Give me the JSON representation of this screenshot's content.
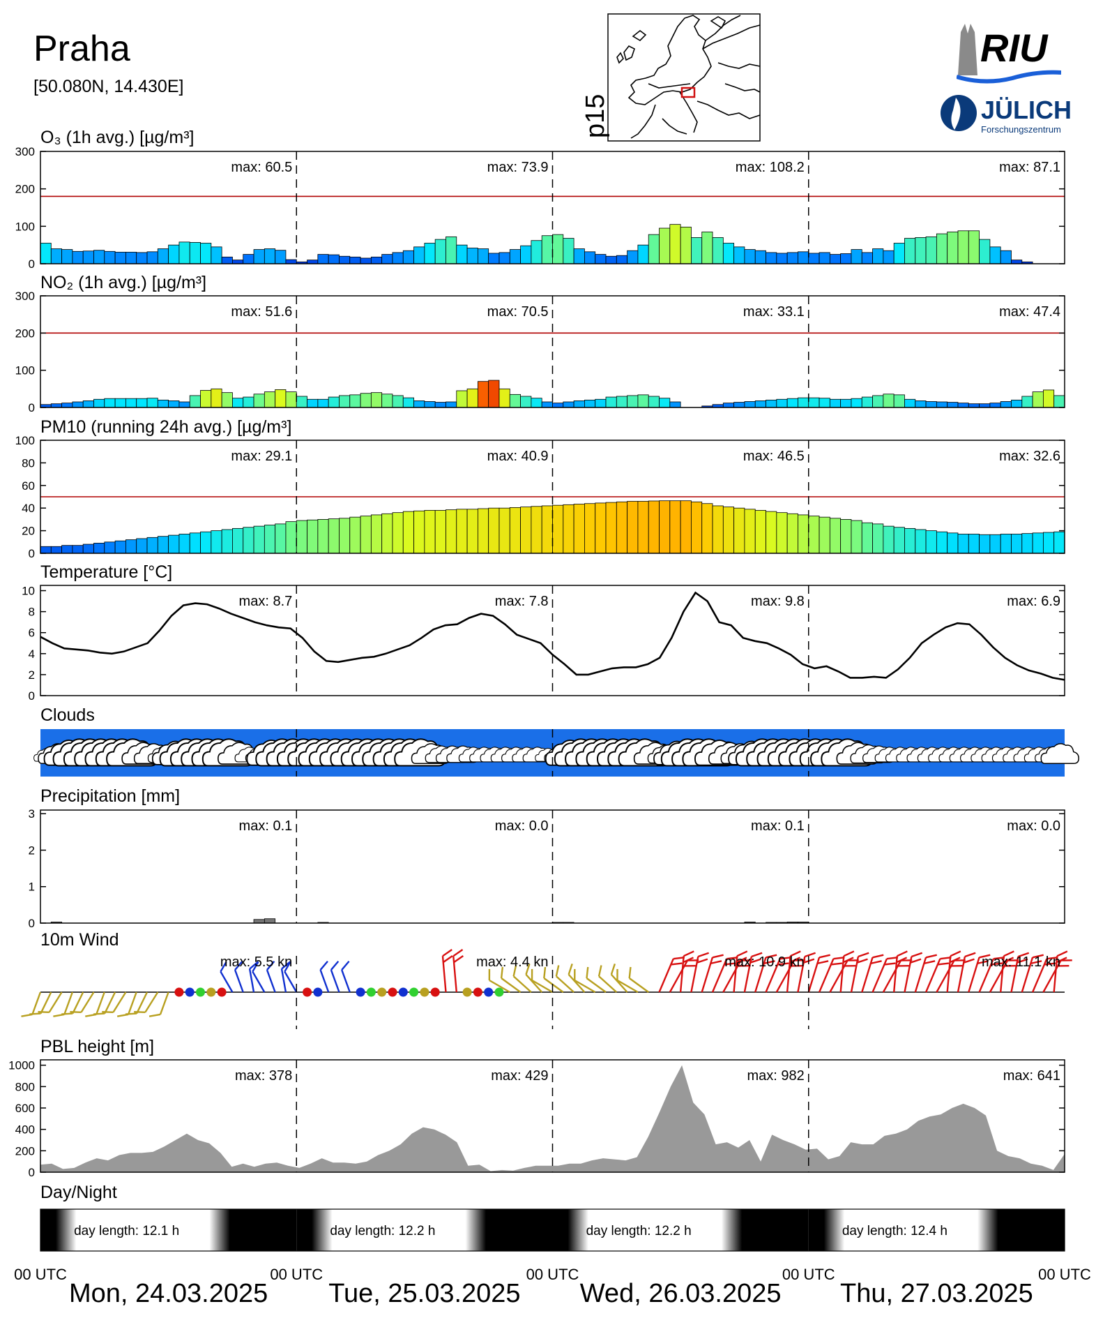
{
  "header": {
    "title": "Praha",
    "coords": "[50.080N, 14.430E]",
    "map_label": "p15",
    "logo_riu": "RIU",
    "logo_fz_name": "JÜLICH",
    "logo_fz_sub": "Forschungszentrum"
  },
  "colors": {
    "limit_line": "#b00000",
    "clouds_sky": "#1a6fe8",
    "precip_bar": "#777777",
    "pbl_fill": "#999999",
    "wind_strong": "#d81010",
    "wind_weak": "#b8a020",
    "wind_calm_blue": "#1030d0",
    "wind_calm_green": "#30d030"
  },
  "time_axis": {
    "tick_label": "00 UTC",
    "days": [
      "Mon, 24.03.2025",
      "Tue, 25.03.2025",
      "Wed, 26.03.2025",
      "Thu, 27.03.2025"
    ]
  },
  "chart_data": [
    {
      "id": "o3",
      "type": "bar",
      "title": "O₃ (1h avg.) [µg/m³]",
      "yticks": [
        0,
        100,
        200,
        300
      ],
      "ylim": [
        0,
        300
      ],
      "limit_line": 180,
      "max_prefix": "max:",
      "daily_max": [
        "60.5",
        "73.9",
        "108.2",
        "87.1"
      ],
      "values": [
        55,
        40,
        38,
        33,
        34,
        36,
        33,
        31,
        31,
        30,
        32,
        40,
        50,
        58,
        57,
        55,
        45,
        18,
        10,
        25,
        38,
        40,
        36,
        11,
        5,
        10,
        25,
        24,
        20,
        18,
        15,
        18,
        25,
        30,
        35,
        45,
        55,
        65,
        72,
        50,
        42,
        40,
        28,
        30,
        38,
        48,
        62,
        75,
        78,
        68,
        40,
        32,
        25,
        20,
        22,
        35,
        50,
        78,
        95,
        105,
        98,
        70,
        85,
        70,
        55,
        45,
        38,
        35,
        30,
        28,
        30,
        32,
        28,
        30,
        25,
        27,
        38,
        30,
        40,
        35,
        55,
        68,
        70,
        72,
        80,
        85,
        88,
        88,
        65,
        45,
        35,
        10,
        5,
        0,
        0,
        0
      ]
    },
    {
      "id": "no2",
      "type": "bar",
      "title": "NO₂ (1h avg.) [µg/m³]",
      "yticks": [
        0,
        100,
        200,
        300
      ],
      "ylim": [
        0,
        300
      ],
      "limit_line": 200,
      "max_prefix": "max:",
      "daily_max": [
        "51.6",
        "70.5",
        "33.1",
        "47.4"
      ],
      "values": [
        8,
        10,
        12,
        15,
        18,
        22,
        24,
        24,
        24,
        24,
        25,
        20,
        18,
        15,
        32,
        46,
        50,
        40,
        25,
        28,
        36,
        42,
        48,
        42,
        30,
        22,
        22,
        28,
        32,
        34,
        38,
        40,
        36,
        32,
        26,
        18,
        16,
        14,
        15,
        45,
        50,
        70,
        73,
        50,
        35,
        30,
        25,
        15,
        12,
        15,
        18,
        20,
        22,
        28,
        30,
        32,
        34,
        30,
        25,
        15,
        0,
        0,
        4,
        8,
        12,
        14,
        16,
        18,
        20,
        22,
        24,
        26,
        26,
        25,
        22,
        22,
        24,
        28,
        32,
        36,
        34,
        22,
        18,
        16,
        15,
        14,
        12,
        10,
        10,
        12,
        16,
        20,
        30,
        42,
        47,
        32
      ]
    },
    {
      "id": "pm10",
      "type": "bar",
      "title": "PM10 (running 24h avg.) [µg/m³]",
      "yticks": [
        0,
        20,
        40,
        60,
        80,
        100
      ],
      "ylim": [
        0,
        100
      ],
      "limit_line": 50,
      "max_prefix": "max:",
      "daily_max": [
        "29.1",
        "40.9",
        "46.5",
        "32.6"
      ],
      "values": [
        6,
        6,
        7,
        7,
        8,
        9,
        10,
        11,
        12,
        13,
        14,
        15,
        16,
        17,
        18,
        19,
        20,
        21,
        22,
        23,
        24,
        25,
        26,
        28,
        29,
        29.5,
        30,
        30.5,
        31,
        32,
        33,
        34,
        35,
        36,
        37,
        37.5,
        38,
        38,
        38.5,
        39,
        39,
        39.5,
        40,
        40,
        40.5,
        41,
        41.5,
        42,
        42.5,
        43,
        43.5,
        44,
        44.5,
        45,
        45.5,
        46,
        46,
        46.3,
        46.5,
        46.5,
        46.5,
        45.5,
        44,
        42,
        41,
        40,
        39,
        38,
        37,
        36,
        35,
        34,
        33,
        32,
        31,
        30,
        29,
        27,
        26,
        24,
        23,
        22,
        21,
        20,
        19,
        18,
        17,
        17,
        16.5,
        16.5,
        17,
        17,
        17.5,
        18,
        18.5,
        19
      ]
    },
    {
      "id": "temp",
      "type": "line",
      "title": "Temperature [°C]",
      "yticks": [
        0,
        2,
        4,
        6,
        8,
        10
      ],
      "ylim": [
        0,
        10.5
      ],
      "max_prefix": "max:",
      "daily_max": [
        "8.7",
        "7.8",
        "9.8",
        "6.9"
      ],
      "values": [
        5.6,
        5.0,
        4.5,
        4.4,
        4.3,
        4.1,
        4.0,
        4.2,
        4.6,
        5.0,
        6.2,
        7.6,
        8.6,
        8.8,
        8.7,
        8.3,
        7.8,
        7.4,
        7.0,
        6.7,
        6.5,
        6.4,
        5.5,
        4.2,
        3.3,
        3.2,
        3.4,
        3.6,
        3.7,
        4.0,
        4.4,
        4.8,
        5.5,
        6.3,
        6.7,
        6.8,
        7.4,
        7.8,
        7.6,
        6.8,
        5.8,
        5.4,
        5.0,
        3.9,
        3.0,
        2.0,
        2.0,
        2.3,
        2.6,
        2.7,
        2.7,
        3.0,
        3.6,
        5.5,
        8.0,
        9.8,
        9.0,
        7.0,
        6.7,
        5.5,
        5.2,
        5.0,
        4.5,
        3.9,
        3.0,
        2.6,
        2.8,
        2.3,
        1.7,
        1.7,
        1.8,
        1.7,
        2.5,
        3.6,
        5.0,
        5.8,
        6.5,
        6.9,
        6.8,
        5.8,
        4.6,
        3.6,
        2.9,
        2.4,
        2.1,
        1.7,
        1.5
      ]
    },
    {
      "id": "clouds",
      "type": "area",
      "title": "Clouds",
      "values": [
        0.2,
        0.6,
        0.9,
        1.0,
        1.0,
        1.0,
        1.0,
        1.0,
        1.0,
        0.7,
        0.6,
        0.4,
        0.8,
        1.0,
        1.0,
        1.0,
        1.0,
        1.0,
        0.7,
        0.3,
        0.3,
        0.9,
        1.0,
        1.0,
        1.0,
        1.0,
        1.0,
        1.0,
        1.0,
        1.0,
        1.0,
        1.0,
        1.0,
        1.0,
        1.0,
        1.0,
        0.6,
        0.4,
        0.4,
        0.4,
        0.3,
        0.3,
        0.3,
        0.3,
        0.3,
        0.3,
        0.3,
        0.2,
        0.3,
        0.9,
        1.0,
        1.0,
        1.0,
        1.0,
        1.0,
        1.0,
        1.0,
        0.7,
        0.5,
        0.8,
        1.0,
        1.0,
        1.0,
        0.9,
        0.7,
        0.6,
        0.8,
        1.0,
        1.0,
        1.0,
        1.0,
        1.0,
        1.0,
        1.0,
        1.0,
        1.0,
        0.7,
        0.5,
        0.4,
        0.3,
        0.3,
        0.3,
        0.3,
        0.3,
        0.3,
        0.3,
        0.3,
        0.3,
        0.3,
        0.3,
        0.3,
        0.3,
        0.3,
        0.3,
        0.3,
        0.6
      ]
    },
    {
      "id": "precip",
      "type": "bar",
      "title": "Precipitation [mm]",
      "yticks": [
        0,
        1,
        2,
        3
      ],
      "ylim": [
        0,
        3.1
      ],
      "max_prefix": "max:",
      "daily_max": [
        "0.1",
        "0.0",
        "0.1",
        "0.0"
      ],
      "values": [
        0,
        0.03,
        0,
        0,
        0,
        0,
        0,
        0,
        0,
        0,
        0,
        0,
        0,
        0,
        0,
        0,
        0,
        0,
        0,
        0,
        0.1,
        0.12,
        0,
        0,
        0,
        0,
        0.02,
        0,
        0,
        0,
        0,
        0,
        0,
        0,
        0,
        0,
        0,
        0,
        0,
        0,
        0,
        0,
        0,
        0,
        0,
        0,
        0,
        0,
        0.02,
        0.02,
        0,
        0,
        0,
        0,
        0,
        0,
        0,
        0,
        0,
        0,
        0,
        0,
        0,
        0,
        0,
        0,
        0.03,
        0,
        0.02,
        0.02,
        0.03,
        0.03,
        0,
        0,
        0,
        0,
        0,
        0,
        0,
        0,
        0,
        0,
        0,
        0,
        0,
        0,
        0,
        0,
        0,
        0,
        0,
        0,
        0,
        0,
        0,
        0
      ]
    },
    {
      "id": "wind",
      "type": "scatter",
      "title": "10m Wind",
      "max_prefix": "max:",
      "daily_max": [
        "5.5 kn",
        "4.4 kn",
        "10.9 kn",
        "11.1 kn"
      ]
    },
    {
      "id": "pbl",
      "type": "area",
      "title": "PBL height [m]",
      "yticks": [
        0,
        200,
        400,
        600,
        800,
        1000
      ],
      "ylim": [
        0,
        1050
      ],
      "max_prefix": "max:",
      "daily_max": [
        "378",
        "429",
        "982",
        "641"
      ],
      "values": [
        70,
        80,
        30,
        40,
        90,
        130,
        110,
        160,
        180,
        180,
        190,
        240,
        300,
        360,
        300,
        270,
        180,
        50,
        80,
        50,
        80,
        90,
        60,
        40,
        80,
        130,
        90,
        90,
        80,
        100,
        160,
        200,
        260,
        360,
        420,
        400,
        350,
        280,
        60,
        70,
        10,
        20,
        15,
        40,
        60,
        60,
        60,
        80,
        80,
        110,
        130,
        120,
        110,
        140,
        330,
        560,
        800,
        1000,
        650,
        540,
        260,
        280,
        230,
        300,
        100,
        350,
        300,
        260,
        210,
        220,
        120,
        150,
        280,
        260,
        260,
        340,
        360,
        400,
        480,
        520,
        540,
        600,
        640,
        600,
        530,
        200,
        150,
        130,
        80,
        60,
        20,
        170
      ]
    },
    {
      "id": "daynight",
      "type": "heatmap",
      "title": "Day/Night",
      "day_label_prefix": "day length:",
      "day_lengths": [
        "12.1 h",
        "12.2 h",
        "12.2 h",
        "12.4 h"
      ]
    }
  ]
}
